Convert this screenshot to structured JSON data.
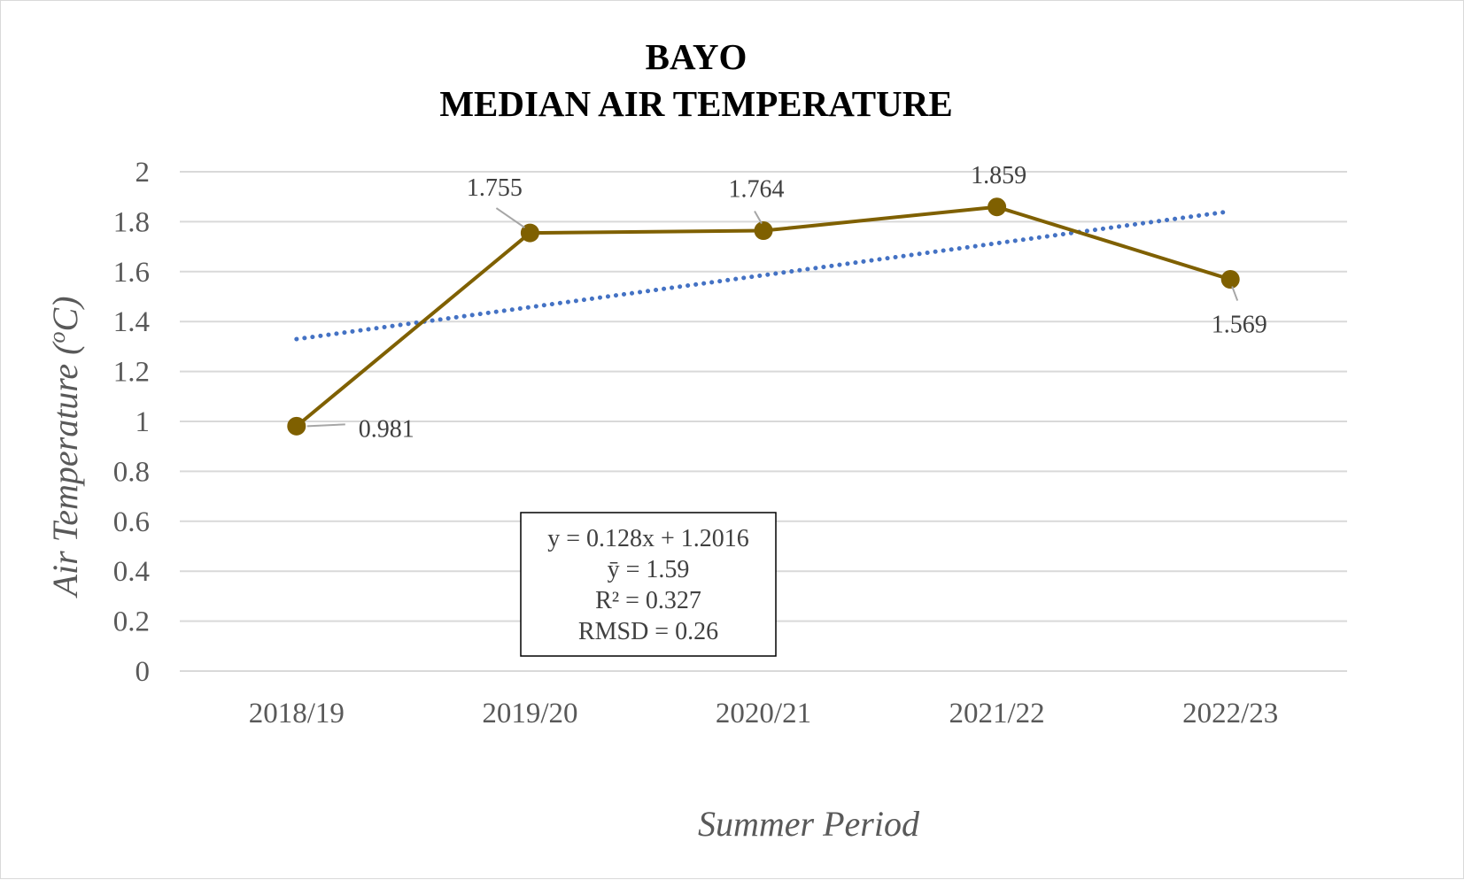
{
  "chart_data": {
    "type": "line",
    "title": [
      "BAYO",
      "MEDIAN AIR TEMPERATURE"
    ],
    "xlabel": "Summer Period",
    "ylabel": "Air Temperature (",
    "ylabel_sup": "o",
    "ylabel_unit": "C)",
    "categories": [
      "2018/19",
      "2019/20",
      "2020/21",
      "2021/22",
      "2022/23"
    ],
    "ylim": [
      0,
      2
    ],
    "yticks": [
      "0",
      "0.2",
      "0.4",
      "0.6",
      "0.8",
      "1",
      "1.2",
      "1.4",
      "1.6",
      "1.8",
      "2"
    ],
    "grid": true,
    "series": [
      {
        "values": [
          0.981,
          1.755,
          1.764,
          1.859,
          1.569
        ],
        "labels": [
          "0.981",
          "1.755",
          "1.764",
          "1.859",
          "1.569"
        ],
        "color": "#7f6000",
        "marker": "circle"
      }
    ],
    "trendline": {
      "type": "linear",
      "slope": 0.128,
      "intercept": 1.2016,
      "color": "#4472c4",
      "style": "dotted"
    },
    "annotation": {
      "lines": [
        "y = 0.128x + 1.2016",
        "ȳ = 1.59",
        "R² = 0.327",
        "RMSD = 0.26"
      ]
    }
  }
}
